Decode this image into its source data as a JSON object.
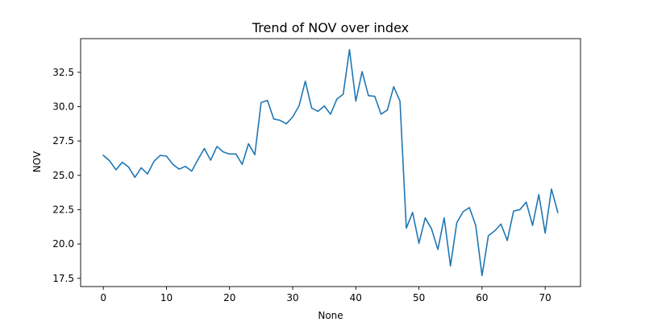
{
  "chart_data": {
    "type": "line",
    "title": "Trend of NOV over index",
    "xlabel": "None",
    "ylabel": "NOV",
    "xlim": [
      -3.6,
      75.6
    ],
    "ylim": [
      16.9,
      34.95
    ],
    "xticks": [
      0,
      10,
      20,
      30,
      40,
      50,
      60,
      70
    ],
    "yticks": [
      17.5,
      20.0,
      22.5,
      25.0,
      27.5,
      30.0,
      32.5
    ],
    "ytick_labels": [
      "17.5",
      "20.0",
      "22.5",
      "25.0",
      "27.5",
      "30.0",
      "32.5"
    ],
    "grid": false,
    "legend": "none",
    "series": [
      {
        "color": "#1f77b4",
        "x": [
          0,
          1,
          2,
          3,
          4,
          5,
          6,
          7,
          8,
          9,
          10,
          11,
          12,
          13,
          14,
          15,
          16,
          17,
          18,
          19,
          20,
          21,
          22,
          23,
          24,
          25,
          26,
          27,
          28,
          29,
          30,
          31,
          32,
          33,
          34,
          35,
          36,
          37,
          38,
          39,
          40,
          41,
          42,
          43,
          44,
          45,
          46,
          47,
          48,
          49,
          50,
          51,
          52,
          53,
          54,
          55,
          56,
          57,
          58,
          59,
          60,
          61,
          62,
          63,
          64,
          65,
          66,
          67,
          68,
          69,
          70,
          71,
          72
        ],
        "values": [
          26.45,
          26.05,
          25.4,
          25.95,
          25.6,
          24.85,
          25.55,
          25.1,
          26.0,
          26.45,
          26.4,
          25.8,
          25.45,
          25.65,
          25.3,
          26.15,
          26.95,
          26.1,
          27.1,
          26.7,
          26.55,
          26.55,
          25.8,
          27.3,
          26.5,
          30.3,
          30.45,
          29.1,
          29.0,
          28.75,
          29.25,
          30.05,
          31.85,
          29.9,
          29.65,
          30.05,
          29.45,
          30.55,
          30.9,
          34.15,
          30.4,
          32.55,
          30.8,
          30.75,
          29.45,
          29.75,
          31.45,
          30.4,
          21.15,
          22.3,
          20.05,
          21.9,
          21.1,
          19.6,
          21.9,
          18.4,
          21.55,
          22.35,
          22.65,
          21.35,
          17.7,
          20.6,
          20.95,
          21.45,
          20.25,
          22.4,
          22.5,
          23.05,
          21.35,
          23.6,
          20.8,
          24.0,
          22.3
        ]
      }
    ]
  }
}
